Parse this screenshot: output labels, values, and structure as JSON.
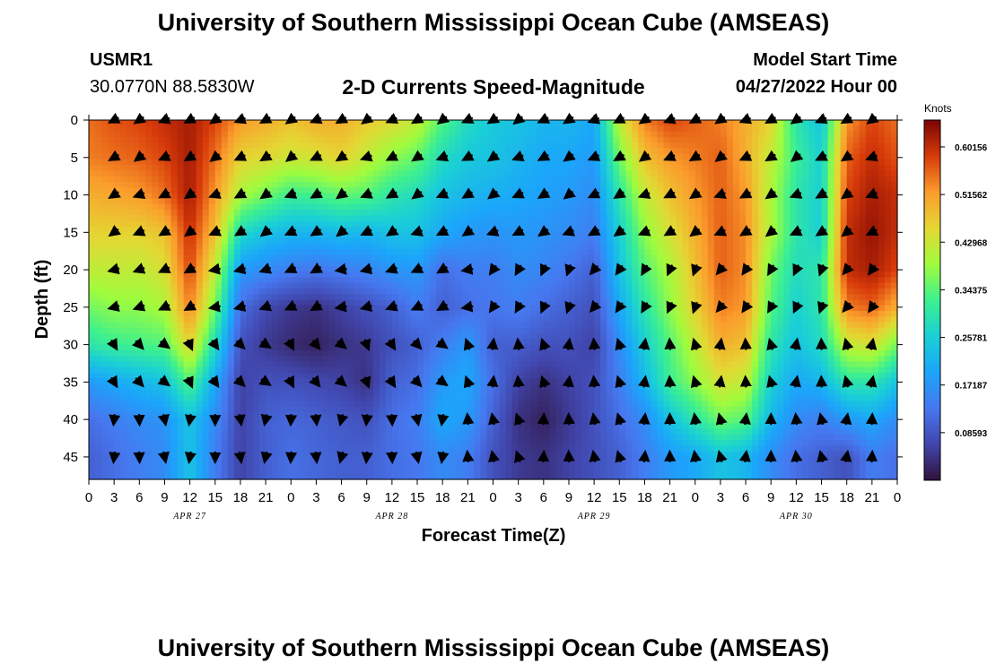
{
  "page": {
    "title": "University of Southern Mississippi Ocean Cube (AMSEAS)",
    "title_repeat": "University of Southern Mississippi Ocean Cube (AMSEAS)",
    "station": {
      "id": "USMR1",
      "coords": "30.0770N  88.5830W"
    },
    "subtitle": "2-D Currents Speed-Magnitude",
    "model_start": {
      "label": "Model Start Time",
      "value": "04/27/2022 Hour 00"
    }
  },
  "chart_data": {
    "type": "heatmap",
    "title": "2-D Currents Speed-Magnitude",
    "xlabel": "Forecast Time(Z)",
    "ylabel": "Depth (ft)",
    "x_ticks": [
      "0",
      "3",
      "6",
      "9",
      "12",
      "15",
      "18",
      "21",
      "0",
      "3",
      "6",
      "9",
      "12",
      "15",
      "18",
      "21",
      "0",
      "3",
      "6",
      "9",
      "12",
      "15",
      "18",
      "21",
      "0",
      "3",
      "6",
      "9",
      "12",
      "15",
      "18",
      "21",
      "0"
    ],
    "day_labels": [
      {
        "label": "APR 27",
        "hour": 12
      },
      {
        "label": "APR 28",
        "hour": 36
      },
      {
        "label": "APR 29",
        "hour": 60
      },
      {
        "label": "APR 30",
        "hour": 84
      }
    ],
    "x_range_hours": [
      0,
      96
    ],
    "y_ticks": [
      0,
      5,
      10,
      15,
      20,
      25,
      30,
      35,
      40,
      45
    ],
    "y_range_ft": [
      0,
      48
    ],
    "arrow_depths": [
      0,
      5,
      10,
      15,
      20,
      25,
      30,
      35,
      40,
      45
    ],
    "colorbar": {
      "units": "Knots",
      "range": [
        0.0,
        0.65
      ],
      "ticks": [
        "0.60156",
        "0.51562",
        "0.42968",
        "0.34375",
        "0.25781",
        "0.17187",
        "0.08593"
      ],
      "tick_values": [
        0.60156,
        0.51562,
        0.42968,
        0.34375,
        0.25781,
        0.17187,
        0.08593
      ]
    },
    "speed_grid": {
      "times_hours": [
        0,
        3,
        6,
        9,
        12,
        15,
        18,
        21,
        24,
        27,
        30,
        33,
        36,
        39,
        42,
        45,
        48,
        51,
        54,
        57,
        60,
        63,
        66,
        69,
        72,
        75,
        78,
        81,
        84,
        87,
        90,
        93,
        96
      ],
      "depths_ft": [
        0,
        5,
        10,
        15,
        20,
        25,
        30,
        35,
        40,
        45
      ],
      "values": [
        [
          0.55,
          0.57,
          0.58,
          0.6,
          0.62,
          0.58,
          0.52,
          0.5,
          0.48,
          0.5,
          0.5,
          0.47,
          0.45,
          0.42,
          0.34,
          0.28,
          0.25,
          0.24,
          0.22,
          0.22,
          0.2,
          0.42,
          0.54,
          0.58,
          0.56,
          0.54,
          0.5,
          0.46,
          0.3,
          0.24,
          0.52,
          0.58,
          0.55
        ],
        [
          0.54,
          0.55,
          0.56,
          0.58,
          0.62,
          0.55,
          0.46,
          0.45,
          0.43,
          0.44,
          0.46,
          0.42,
          0.38,
          0.35,
          0.28,
          0.25,
          0.24,
          0.22,
          0.2,
          0.2,
          0.18,
          0.36,
          0.48,
          0.52,
          0.54,
          0.56,
          0.5,
          0.42,
          0.32,
          0.26,
          0.56,
          0.6,
          0.57
        ],
        [
          0.5,
          0.51,
          0.52,
          0.55,
          0.62,
          0.52,
          0.4,
          0.36,
          0.32,
          0.33,
          0.35,
          0.34,
          0.3,
          0.28,
          0.24,
          0.22,
          0.21,
          0.2,
          0.19,
          0.18,
          0.16,
          0.3,
          0.42,
          0.48,
          0.52,
          0.56,
          0.52,
          0.4,
          0.3,
          0.26,
          0.58,
          0.62,
          0.6
        ],
        [
          0.46,
          0.46,
          0.46,
          0.48,
          0.6,
          0.48,
          0.28,
          0.24,
          0.22,
          0.22,
          0.23,
          0.22,
          0.24,
          0.24,
          0.2,
          0.18,
          0.17,
          0.18,
          0.17,
          0.16,
          0.14,
          0.26,
          0.38,
          0.44,
          0.5,
          0.56,
          0.53,
          0.4,
          0.3,
          0.26,
          0.6,
          0.63,
          0.6
        ],
        [
          0.42,
          0.42,
          0.42,
          0.44,
          0.58,
          0.42,
          0.18,
          0.16,
          0.14,
          0.13,
          0.14,
          0.15,
          0.17,
          0.18,
          0.12,
          0.14,
          0.14,
          0.16,
          0.15,
          0.13,
          0.1,
          0.24,
          0.34,
          0.4,
          0.48,
          0.56,
          0.53,
          0.36,
          0.28,
          0.3,
          0.6,
          0.62,
          0.58
        ],
        [
          0.36,
          0.38,
          0.38,
          0.4,
          0.54,
          0.36,
          0.12,
          0.07,
          0.05,
          0.04,
          0.06,
          0.08,
          0.1,
          0.14,
          0.1,
          0.12,
          0.13,
          0.14,
          0.12,
          0.1,
          0.08,
          0.2,
          0.3,
          0.38,
          0.46,
          0.54,
          0.52,
          0.34,
          0.26,
          0.3,
          0.54,
          0.56,
          0.5
        ],
        [
          0.3,
          0.32,
          0.33,
          0.34,
          0.46,
          0.28,
          0.08,
          0.05,
          0.03,
          0.02,
          0.04,
          0.05,
          0.08,
          0.1,
          0.14,
          0.18,
          0.1,
          0.1,
          0.08,
          0.08,
          0.06,
          0.16,
          0.26,
          0.34,
          0.42,
          0.5,
          0.48,
          0.3,
          0.24,
          0.28,
          0.42,
          0.44,
          0.36
        ],
        [
          0.18,
          0.2,
          0.22,
          0.24,
          0.34,
          0.2,
          0.06,
          0.08,
          0.08,
          0.07,
          0.06,
          0.04,
          0.1,
          0.12,
          0.18,
          0.2,
          0.12,
          0.06,
          0.04,
          0.06,
          0.08,
          0.14,
          0.22,
          0.32,
          0.38,
          0.44,
          0.42,
          0.26,
          0.2,
          0.22,
          0.3,
          0.3,
          0.24
        ],
        [
          0.12,
          0.14,
          0.16,
          0.17,
          0.24,
          0.16,
          0.06,
          0.1,
          0.11,
          0.1,
          0.09,
          0.08,
          0.12,
          0.14,
          0.2,
          0.18,
          0.1,
          0.04,
          0.02,
          0.05,
          0.08,
          0.12,
          0.16,
          0.24,
          0.3,
          0.36,
          0.34,
          0.22,
          0.16,
          0.14,
          0.18,
          0.2,
          0.16
        ],
        [
          0.1,
          0.12,
          0.14,
          0.16,
          0.24,
          0.14,
          0.06,
          0.1,
          0.12,
          0.11,
          0.1,
          0.1,
          0.12,
          0.13,
          0.16,
          0.14,
          0.08,
          0.05,
          0.04,
          0.06,
          0.08,
          0.1,
          0.14,
          0.18,
          0.2,
          0.24,
          0.22,
          0.16,
          0.12,
          0.1,
          0.08,
          0.14,
          0.12
        ]
      ]
    }
  }
}
